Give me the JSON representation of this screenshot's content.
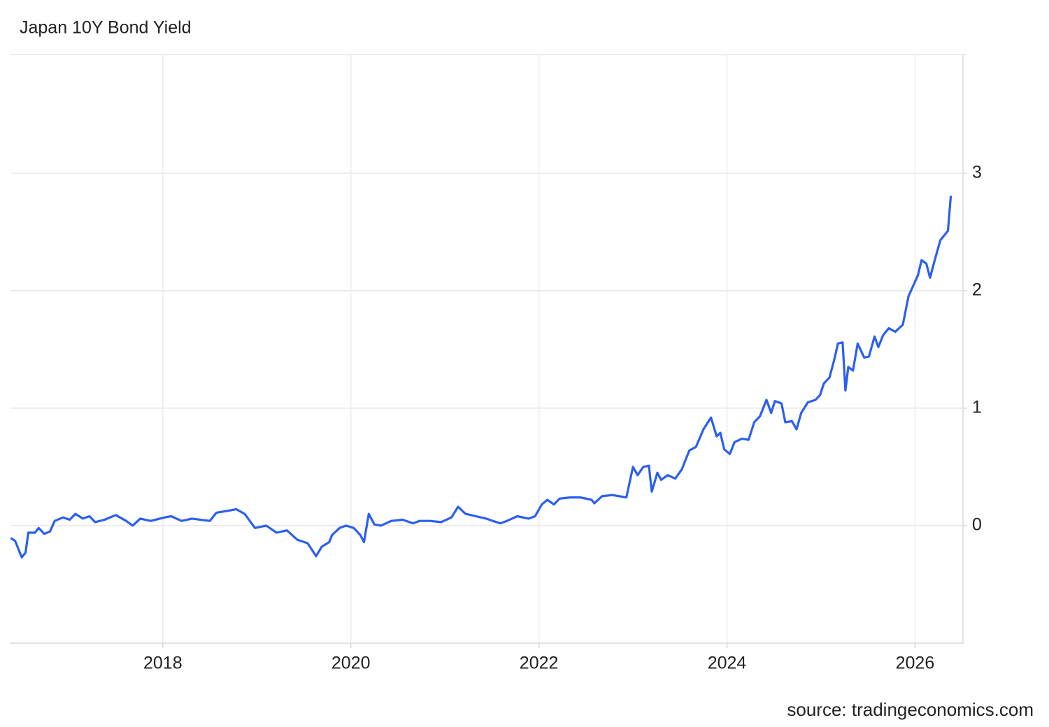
{
  "chart_data": {
    "type": "line",
    "title": "Japan 10Y Bond Yield",
    "source": "source: tradingeconomics.com",
    "x": [
      2016.39,
      2016.43,
      2016.5,
      2016.54,
      2016.57,
      2016.64,
      2016.68,
      2016.74,
      2016.8,
      2016.85,
      2016.94,
      2017.01,
      2017.07,
      2017.15,
      2017.22,
      2017.28,
      2017.38,
      2017.5,
      2017.61,
      2017.68,
      2017.76,
      2017.87,
      2018.02,
      2018.09,
      2018.2,
      2018.31,
      2018.5,
      2018.57,
      2018.72,
      2018.78,
      2018.87,
      2018.98,
      2019.1,
      2019.21,
      2019.32,
      2019.43,
      2019.54,
      2019.63,
      2019.69,
      2019.77,
      2019.8,
      2019.88,
      2019.95,
      2020.03,
      2020.1,
      2020.14,
      2020.19,
      2020.25,
      2020.32,
      2020.43,
      2020.55,
      2020.66,
      2020.73,
      2020.84,
      2020.96,
      2021.07,
      2021.14,
      2021.22,
      2021.33,
      2021.44,
      2021.51,
      2021.59,
      2021.66,
      2021.77,
      2021.89,
      2021.96,
      2022.03,
      2022.09,
      2022.16,
      2022.22,
      2022.33,
      2022.44,
      2022.56,
      2022.59,
      2022.67,
      2022.78,
      2022.93,
      2023.0,
      2023.05,
      2023.11,
      2023.17,
      2023.2,
      2023.26,
      2023.3,
      2023.37,
      2023.45,
      2023.52,
      2023.6,
      2023.67,
      2023.75,
      2023.83,
      2023.89,
      2023.93,
      2023.97,
      2024.03,
      2024.08,
      2024.16,
      2024.23,
      2024.29,
      2024.35,
      2024.42,
      2024.47,
      2024.51,
      2024.58,
      2024.62,
      2024.69,
      2024.74,
      2024.79,
      2024.86,
      2024.94,
      2024.99,
      2025.03,
      2025.09,
      2025.14,
      2025.18,
      2025.23,
      2025.26,
      2025.29,
      2025.34,
      2025.39,
      2025.46,
      2025.51,
      2025.57,
      2025.61,
      2025.66,
      2025.72,
      2025.79,
      2025.87,
      2025.93,
      2025.98,
      2026.03,
      2026.07,
      2026.12,
      2026.16,
      2026.22,
      2026.27,
      2026.32,
      2026.35,
      2026.38
    ],
    "values": [
      -0.11,
      -0.13,
      -0.27,
      -0.23,
      -0.06,
      -0.06,
      -0.02,
      -0.07,
      -0.05,
      0.04,
      0.07,
      0.05,
      0.1,
      0.06,
      0.08,
      0.03,
      0.05,
      0.09,
      0.04,
      0.0,
      0.06,
      0.04,
      0.07,
      0.08,
      0.04,
      0.06,
      0.04,
      0.11,
      0.13,
      0.14,
      0.1,
      -0.02,
      0.0,
      -0.06,
      -0.04,
      -0.12,
      -0.15,
      -0.26,
      -0.18,
      -0.14,
      -0.08,
      -0.02,
      0.0,
      -0.02,
      -0.08,
      -0.14,
      0.1,
      0.01,
      0.0,
      0.04,
      0.05,
      0.02,
      0.04,
      0.04,
      0.03,
      0.07,
      0.16,
      0.1,
      0.08,
      0.06,
      0.04,
      0.02,
      0.04,
      0.08,
      0.06,
      0.08,
      0.18,
      0.22,
      0.18,
      0.23,
      0.24,
      0.24,
      0.22,
      0.19,
      0.25,
      0.26,
      0.24,
      0.5,
      0.43,
      0.5,
      0.51,
      0.29,
      0.45,
      0.39,
      0.43,
      0.4,
      0.48,
      0.64,
      0.67,
      0.82,
      0.92,
      0.76,
      0.79,
      0.65,
      0.61,
      0.71,
      0.74,
      0.73,
      0.88,
      0.93,
      1.07,
      0.96,
      1.06,
      1.04,
      0.88,
      0.89,
      0.82,
      0.96,
      1.05,
      1.07,
      1.11,
      1.21,
      1.26,
      1.41,
      1.55,
      1.56,
      1.15,
      1.35,
      1.32,
      1.55,
      1.43,
      1.44,
      1.61,
      1.52,
      1.62,
      1.68,
      1.65,
      1.71,
      1.95,
      2.04,
      2.13,
      2.26,
      2.23,
      2.11,
      2.29,
      2.43,
      2.48,
      2.51,
      2.8
    ],
    "color": "#2a5ff0",
    "xlim": [
      2016.38,
      2026.51
    ],
    "xticks": [
      2018,
      2020,
      2022,
      2024,
      2026
    ],
    "ylim": [
      -1,
      4.01
    ],
    "yticks": [
      0,
      1,
      2,
      3
    ],
    "grid": true
  }
}
